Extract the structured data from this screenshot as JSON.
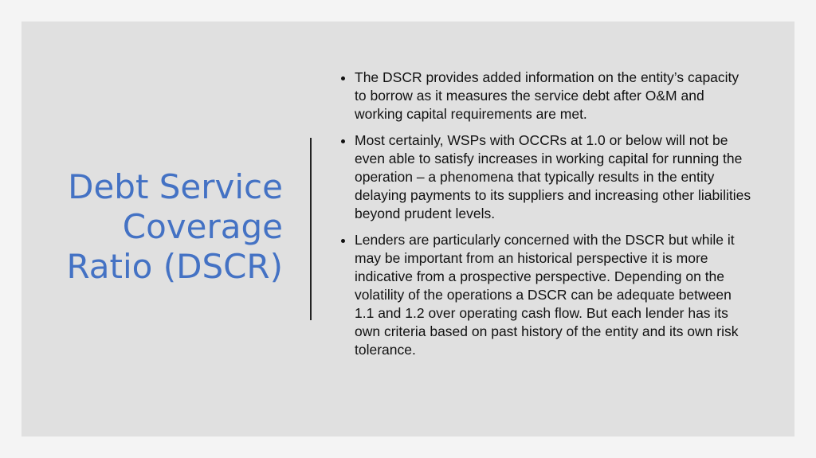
{
  "slide": {
    "title_lines": [
      "Debt Service",
      "Coverage",
      "Ratio (DSCR)"
    ],
    "bullets": [
      "The DSCR provides added information on the entity’s capacity to borrow as it measures the service debt after O&M and working capital requirements are met.",
      "Most certainly, WSPs with OCCRs at 1.0 or below will not be even able to satisfy increases in working capital for running the operation – a phenomena that typically results in the entity delaying payments to its suppliers and increasing other liabilities beyond prudent levels.",
      "Lenders are particularly concerned with the DSCR but while it may be important from an historical perspective it is more indicative from a prospective perspective. Depending on the volatility of the operations a DSCR can be adequate between 1.1 and 1.2 over operating cash flow. But each lender has its own criteria based on past history of the entity and its own risk tolerance."
    ]
  }
}
